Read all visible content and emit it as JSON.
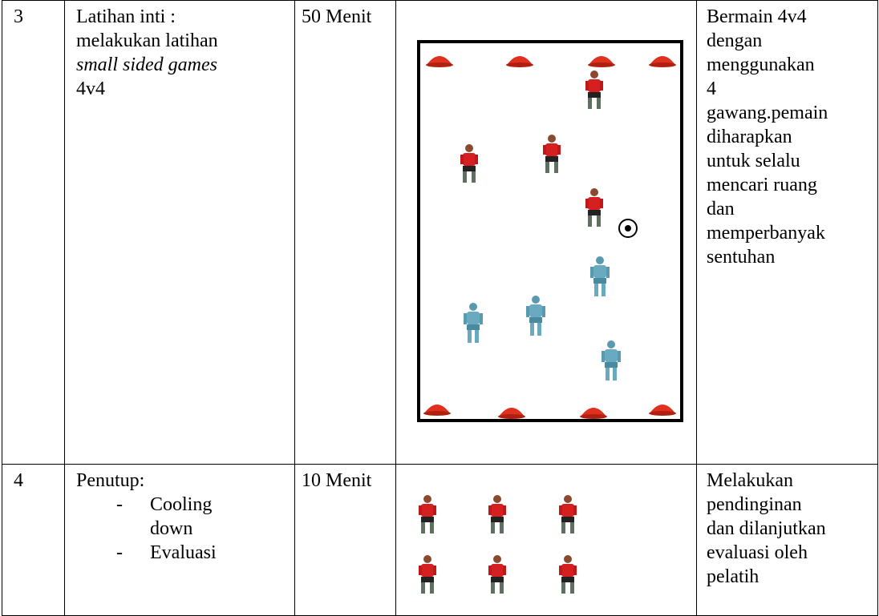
{
  "table": {
    "rows": [
      {
        "no": "3",
        "activity": {
          "lines": [
            "Latihan inti :",
            "melakukan latihan"
          ],
          "italic": "small sided games",
          "tail": "4v4"
        },
        "time": "50 Menit",
        "description": [
          "Bermain 4v4",
          "dengan",
          "menggunakan",
          "4",
          "gawang.pemain",
          "diharapkan",
          "untuk selalu",
          "mencari ruang",
          "dan",
          "memperbanyak",
          "sentuhan"
        ]
      },
      {
        "no": "4",
        "activity": {
          "heading": "Penutup:",
          "items": [
            "Cooling down",
            "Evaluasi"
          ]
        },
        "time": "10 Menit",
        "description": [
          "Melakukan",
          "pendinginan",
          "dan dilanjutkan",
          "evaluasi oleh",
          "pelatih"
        ]
      }
    ]
  }
}
